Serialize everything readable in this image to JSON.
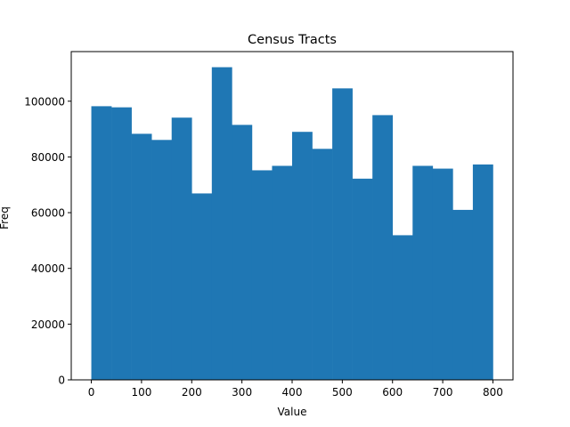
{
  "chart_data": {
    "type": "bar",
    "title": "Census Tracts",
    "xlabel": "Value",
    "ylabel": "Freq",
    "bin_width": 40,
    "bin_starts": [
      0,
      40,
      80,
      120,
      160,
      200,
      240,
      280,
      320,
      360,
      400,
      440,
      480,
      520,
      560,
      600,
      640,
      680,
      720,
      760
    ],
    "values": [
      98200,
      97800,
      88300,
      86100,
      94100,
      66900,
      112200,
      91500,
      75200,
      76800,
      89000,
      82900,
      104600,
      72200,
      95000,
      51900,
      76800,
      75800,
      61000,
      77300
    ],
    "xlim": [
      -40,
      840
    ],
    "ylim": [
      0,
      117800
    ],
    "xticks": [
      0,
      100,
      200,
      300,
      400,
      500,
      600,
      700,
      800
    ],
    "yticks": [
      0,
      20000,
      40000,
      60000,
      80000,
      100000
    ],
    "bar_color": "#1f77b4",
    "grid": false,
    "legend": "none"
  }
}
